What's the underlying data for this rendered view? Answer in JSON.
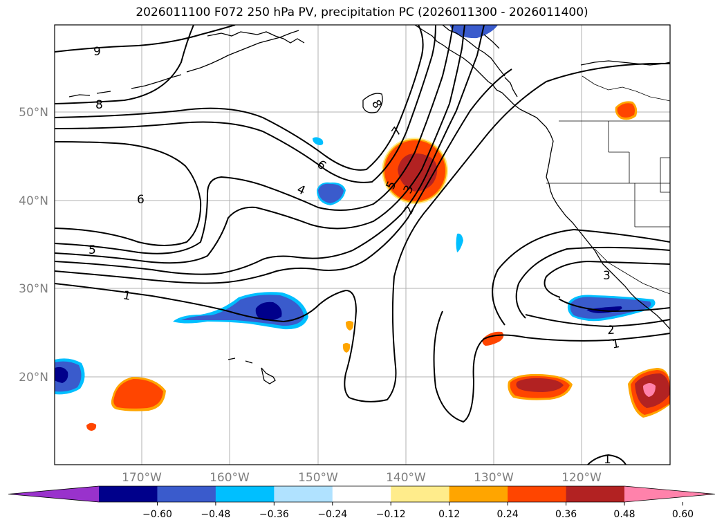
{
  "title": "2026011100 F072 250 hPa PV, precipitation PC (2026011300 - 2026011400)",
  "latitude_labels": [
    "50°N",
    "40°N",
    "30°N",
    "20°N"
  ],
  "longitude_labels": [
    "170°W",
    "160°W",
    "150°W",
    "140°W",
    "130°W",
    "120°W"
  ],
  "pv_contour_labels": [
    "9",
    "8",
    "8",
    "7",
    "6",
    "6",
    "5",
    "5",
    "4",
    "3",
    "2",
    "1",
    "1",
    "1",
    "2",
    "3",
    "1"
  ],
  "colorbar": {
    "ticks": [
      "−0.60",
      "−0.48",
      "−0.36",
      "−0.24",
      "−0.12",
      "0.12",
      "0.24",
      "0.36",
      "0.48",
      "0.60"
    ],
    "colors": [
      "#9932cc",
      "#00008b",
      "#3a5bcc",
      "#00bfff",
      "#b0e2ff",
      "#ffffff",
      "#ffec8b",
      "#ffa500",
      "#ff4500",
      "#b22222",
      "#ff82ab"
    ]
  }
}
